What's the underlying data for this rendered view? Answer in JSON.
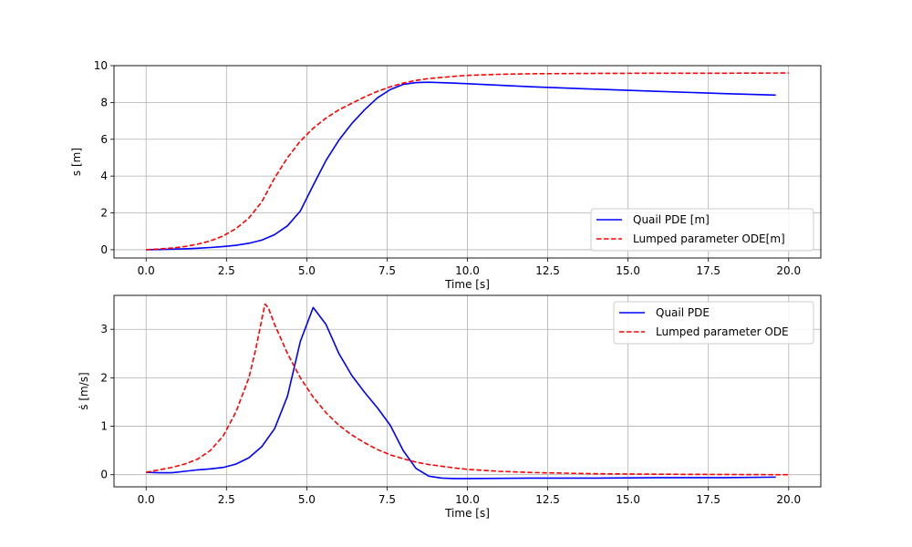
{
  "colors": {
    "pde": "#0000ff",
    "ode": "#ff0000",
    "grid": "#b0b0b0"
  },
  "chart_data": [
    {
      "type": "line",
      "xlabel": "Time [s]",
      "ylabel": "s [m]",
      "xlim": [
        -1.0,
        21.0
      ],
      "ylim": [
        -0.45,
        10.0
      ],
      "xticks": [
        0.0,
        2.5,
        5.0,
        7.5,
        10.0,
        12.5,
        15.0,
        17.5,
        20.0
      ],
      "xtick_labels": [
        "0.0",
        "2.5",
        "5.0",
        "7.5",
        "10.0",
        "12.5",
        "15.0",
        "17.5",
        "20.0"
      ],
      "yticks": [
        0,
        2,
        4,
        6,
        8,
        10
      ],
      "ytick_labels": [
        "0",
        "2",
        "4",
        "6",
        "8",
        "10"
      ],
      "grid": true,
      "legend_position": "bottom-right",
      "series": [
        {
          "name": "Quail PDE [m]",
          "style": "solid",
          "x": [
            0.0,
            0.4,
            0.8,
            1.2,
            1.6,
            2.0,
            2.4,
            2.8,
            3.2,
            3.6,
            4.0,
            4.4,
            4.8,
            5.2,
            5.6,
            6.0,
            6.4,
            6.8,
            7.2,
            7.6,
            8.0,
            8.4,
            8.8,
            9.6,
            10.0,
            12.0,
            14.0,
            16.0,
            18.0,
            19.6
          ],
          "y": [
            0.0,
            0.01,
            0.03,
            0.05,
            0.08,
            0.12,
            0.17,
            0.24,
            0.35,
            0.52,
            0.82,
            1.3,
            2.1,
            3.5,
            4.85,
            5.95,
            6.85,
            7.6,
            8.25,
            8.7,
            8.98,
            9.08,
            9.1,
            9.05,
            9.02,
            8.85,
            8.72,
            8.6,
            8.48,
            8.4
          ]
        },
        {
          "name": "Lumped parameter ODE[m]",
          "style": "dashed",
          "x": [
            0.0,
            0.4,
            0.8,
            1.2,
            1.6,
            2.0,
            2.4,
            2.8,
            3.2,
            3.6,
            4.0,
            4.4,
            4.8,
            5.2,
            5.6,
            6.0,
            6.4,
            6.8,
            7.2,
            7.6,
            8.0,
            8.4,
            8.8,
            9.6,
            10.0,
            11.0,
            12.0,
            14.0,
            16.0,
            18.0,
            20.0
          ],
          "y": [
            0.0,
            0.04,
            0.09,
            0.17,
            0.3,
            0.48,
            0.75,
            1.15,
            1.72,
            2.6,
            3.9,
            5.0,
            5.9,
            6.6,
            7.15,
            7.6,
            7.95,
            8.3,
            8.6,
            8.85,
            9.05,
            9.2,
            9.3,
            9.42,
            9.47,
            9.53,
            9.56,
            9.58,
            9.59,
            9.59,
            9.6
          ]
        }
      ]
    },
    {
      "type": "line",
      "xlabel": "Time [s]",
      "ylabel": "ṡ [m/s]",
      "xlim": [
        -1.0,
        21.0
      ],
      "ylim": [
        -0.25,
        3.7
      ],
      "xticks": [
        0.0,
        2.5,
        5.0,
        7.5,
        10.0,
        12.5,
        15.0,
        17.5,
        20.0
      ],
      "xtick_labels": [
        "0.0",
        "2.5",
        "5.0",
        "7.5",
        "10.0",
        "12.5",
        "15.0",
        "17.5",
        "20.0"
      ],
      "yticks": [
        0,
        1,
        2,
        3
      ],
      "ytick_labels": [
        "0",
        "1",
        "2",
        "3"
      ],
      "grid": true,
      "legend_position": "top-right",
      "series": [
        {
          "name": "Quail PDE",
          "style": "solid",
          "x": [
            0.0,
            0.4,
            0.8,
            1.2,
            1.6,
            2.0,
            2.4,
            2.8,
            3.2,
            3.6,
            4.0,
            4.4,
            4.8,
            5.2,
            5.6,
            6.0,
            6.4,
            6.8,
            7.2,
            7.6,
            8.0,
            8.4,
            8.8,
            9.2,
            9.6,
            10.0,
            12.0,
            14.0,
            16.0,
            18.0,
            19.6
          ],
          "y": [
            0.05,
            0.04,
            0.04,
            0.07,
            0.1,
            0.12,
            0.15,
            0.22,
            0.35,
            0.58,
            0.95,
            1.62,
            2.75,
            3.45,
            3.1,
            2.5,
            2.05,
            1.7,
            1.38,
            1.02,
            0.5,
            0.13,
            -0.03,
            -0.07,
            -0.08,
            -0.08,
            -0.07,
            -0.07,
            -0.06,
            -0.06,
            -0.05
          ]
        },
        {
          "name": "Lumped parameter ODE",
          "style": "dashed",
          "x": [
            0.0,
            0.4,
            0.8,
            1.2,
            1.6,
            2.0,
            2.4,
            2.8,
            3.2,
            3.4,
            3.6,
            3.7,
            3.8,
            4.0,
            4.4,
            4.8,
            5.2,
            5.6,
            6.0,
            6.4,
            6.8,
            7.2,
            7.6,
            8.0,
            8.4,
            8.8,
            9.6,
            10.0,
            11.0,
            12.0,
            14.0,
            16.0,
            18.0,
            20.0
          ],
          "y": [
            0.05,
            0.1,
            0.15,
            0.22,
            0.32,
            0.5,
            0.8,
            1.3,
            2.0,
            2.55,
            3.2,
            3.52,
            3.45,
            3.1,
            2.5,
            2.0,
            1.6,
            1.28,
            1.02,
            0.82,
            0.66,
            0.52,
            0.41,
            0.33,
            0.26,
            0.21,
            0.14,
            0.11,
            0.07,
            0.045,
            0.02,
            0.01,
            0.005,
            0.0
          ]
        }
      ]
    }
  ]
}
